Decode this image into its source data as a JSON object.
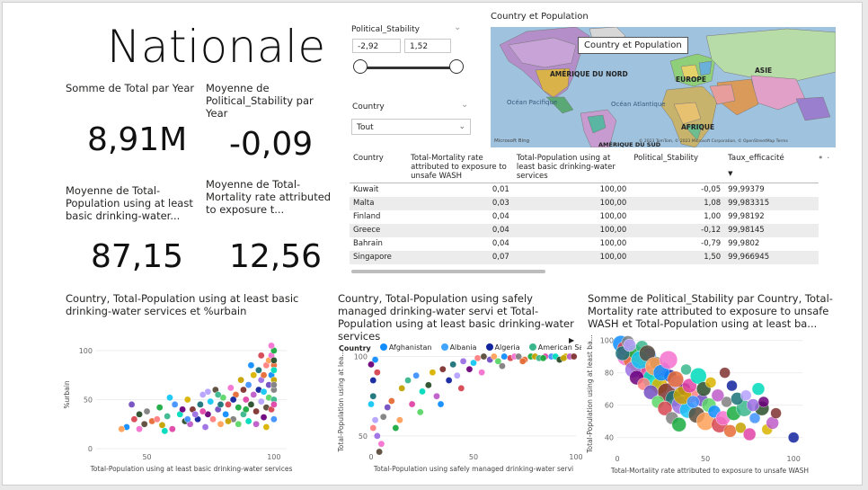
{
  "header": {
    "title": "Nationale"
  },
  "kpis": [
    {
      "label": "Somme de Total par Year",
      "value": "8,91M"
    },
    {
      "label": "Moyenne de Political_Stability par Year",
      "value": "-0,09"
    },
    {
      "label": "Moyenne de Total-Population using at least basic drinking-water...",
      "value": "87,15"
    },
    {
      "label": "Moyenne de Total-Mortality rate attributed to exposure t...",
      "value": "12,56"
    }
  ],
  "slicer_stability": {
    "title": "Political_Stability",
    "min": "-2,92",
    "max": "1,52"
  },
  "slicer_country": {
    "title": "Country",
    "selected": "Tout"
  },
  "map": {
    "title": "Country et Population",
    "tooltip": "Country et Population",
    "labels": {
      "north_america": "AMÉRIQUE DU NORD",
      "europe": "EUROPE",
      "asia": "ASIE",
      "pacific": "Océan Pacifique",
      "atlantic": "Océan Atlantique",
      "africa": "AFRIQUE",
      "south_america": "AMÉRIQUE DU SUD"
    },
    "attribution": "© 2023 TomTom, © 2023 Microsoft Corporation, © OpenStreetMap Terms",
    "bing": "Microsoft Bing"
  },
  "table": {
    "columns": [
      "Country",
      "Total-Mortality rate attributed to exposure to unsafe WASH",
      "Total-Population using at least basic drinking-water services",
      "Political_Stability",
      "Taux_efficacité"
    ],
    "rows": [
      [
        "Kuwait",
        "0,01",
        "100,00",
        "-0,05",
        "99,99379"
      ],
      [
        "Malta",
        "0,03",
        "100,00",
        "1,08",
        "99,983315"
      ],
      [
        "Finland",
        "0,04",
        "100,00",
        "1,00",
        "99,98192"
      ],
      [
        "Greece",
        "0,04",
        "100,00",
        "-0,12",
        "99,98145"
      ],
      [
        "Bahrain",
        "0,04",
        "100,00",
        "-0,79",
        "99,9802"
      ],
      [
        "Singapore",
        "0,07",
        "100,00",
        "1,50",
        "99,966945"
      ]
    ]
  },
  "chart1": {
    "title": "Country, Total-Population using at least basic drinking-water services et %urbain",
    "chart_data": {
      "type": "scatter",
      "xlabel": "Total-Population using at least basic drinking-water services",
      "ylabel": "%urbain",
      "xlim": [
        30,
        105
      ],
      "ylim": [
        0,
        110
      ],
      "xticks": [
        "50",
        "100"
      ],
      "yticks": [
        "0",
        "50",
        "100"
      ],
      "points": [
        [
          42,
          22
        ],
        [
          45,
          30
        ],
        [
          47,
          20
        ],
        [
          50,
          38
        ],
        [
          52,
          28
        ],
        [
          55,
          42
        ],
        [
          56,
          24
        ],
        [
          58,
          33
        ],
        [
          60,
          20
        ],
        [
          61,
          45
        ],
        [
          63,
          35
        ],
        [
          65,
          28
        ],
        [
          66,
          50
        ],
        [
          67,
          25
        ],
        [
          68,
          40
        ],
        [
          70,
          30
        ],
        [
          71,
          45
        ],
        [
          72,
          55
        ],
        [
          73,
          22
        ],
        [
          74,
          35
        ],
        [
          75,
          48
        ],
        [
          76,
          30
        ],
        [
          77,
          60
        ],
        [
          78,
          40
        ],
        [
          79,
          25
        ],
        [
          80,
          52
        ],
        [
          81,
          35
        ],
        [
          82,
          45
        ],
        [
          83,
          62
        ],
        [
          84,
          30
        ],
        [
          85,
          55
        ],
        [
          86,
          42
        ],
        [
          87,
          70
        ],
        [
          88,
          35
        ],
        [
          89,
          50
        ],
        [
          90,
          65
        ],
        [
          90,
          28
        ],
        [
          91,
          45
        ],
        [
          92,
          75
        ],
        [
          92,
          55
        ],
        [
          93,
          38
        ],
        [
          94,
          60
        ],
        [
          94,
          80
        ],
        [
          95,
          48
        ],
        [
          95,
          70
        ],
        [
          96,
          32
        ],
        [
          96,
          58
        ],
        [
          97,
          85
        ],
        [
          97,
          42
        ],
        [
          98,
          65
        ],
        [
          98,
          90
        ],
        [
          98,
          52
        ],
        [
          99,
          75
        ],
        [
          99,
          40
        ],
        [
          99,
          95
        ],
        [
          100,
          60
        ],
        [
          100,
          85
        ],
        [
          100,
          100
        ],
        [
          100,
          70
        ],
        [
          100,
          50
        ],
        [
          100,
          45
        ],
        [
          100,
          30
        ],
        [
          100,
          80
        ],
        [
          100,
          90
        ],
        [
          97,
          22
        ],
        [
          93,
          25
        ],
        [
          88,
          60
        ],
        [
          84,
          50
        ],
        [
          79,
          45
        ],
        [
          74,
          58
        ],
        [
          69,
          35
        ],
        [
          64,
          40
        ],
        [
          59,
          52
        ],
        [
          54,
          30
        ],
        [
          49,
          25
        ],
        [
          44,
          45
        ],
        [
          40,
          20
        ],
        [
          86,
          25
        ],
        [
          91,
          85
        ],
        [
          95,
          95
        ],
        [
          99,
          105
        ],
        [
          100,
          65
        ],
        [
          96,
          75
        ],
        [
          89,
          40
        ],
        [
          82,
          28
        ],
        [
          78,
          55
        ],
        [
          72,
          38
        ],
        [
          66,
          30
        ],
        [
          57,
          18
        ],
        [
          47,
          35
        ]
      ]
    }
  },
  "chart2": {
    "title": "Country, Total-Population using safely managed drinking-water servi et Total-Population using at least basic drinking-water services",
    "legend_title": "Country",
    "legend": [
      {
        "name": "Afghanistan",
        "color": "#118DFF"
      },
      {
        "name": "Albania",
        "color": "#41A4FF"
      },
      {
        "name": "Algeria",
        "color": "#12239E"
      },
      {
        "name": "American Samoa",
        "color": "#3AB78C"
      }
    ],
    "chart_data": {
      "type": "scatter",
      "xlabel": "Total-Population using safely managed drinking-water servi",
      "ylabel": "Total-Population using at lea...",
      "xlim": [
        0,
        100
      ],
      "ylim": [
        42,
        102
      ],
      "xticks": [
        "0",
        "50",
        "100"
      ],
      "yticks": [
        "50",
        "100"
      ],
      "points": [
        [
          2,
          98
        ],
        [
          3,
          90
        ],
        [
          5,
          45
        ],
        [
          6,
          62
        ],
        [
          10,
          72
        ],
        [
          12,
          55
        ],
        [
          15,
          80
        ],
        [
          18,
          85
        ],
        [
          20,
          70
        ],
        [
          22,
          88
        ],
        [
          25,
          78
        ],
        [
          28,
          82
        ],
        [
          30,
          90
        ],
        [
          32,
          75
        ],
        [
          35,
          92
        ],
        [
          38,
          85
        ],
        [
          40,
          95
        ],
        [
          42,
          88
        ],
        [
          45,
          97
        ],
        [
          48,
          92
        ],
        [
          50,
          96
        ],
        [
          52,
          99
        ],
        [
          55,
          100
        ],
        [
          58,
          98
        ],
        [
          60,
          100
        ],
        [
          62,
          97
        ],
        [
          65,
          100
        ],
        [
          68,
          99
        ],
        [
          70,
          100
        ],
        [
          72,
          100
        ],
        [
          75,
          98
        ],
        [
          78,
          100
        ],
        [
          80,
          100
        ],
        [
          82,
          99
        ],
        [
          85,
          100
        ],
        [
          88,
          100
        ],
        [
          90,
          100
        ],
        [
          92,
          98
        ],
        [
          95,
          100
        ],
        [
          97,
          100
        ],
        [
          99,
          100
        ],
        [
          1,
          85
        ],
        [
          1,
          75
        ],
        [
          2,
          60
        ],
        [
          3,
          50
        ],
        [
          0,
          95
        ],
        [
          0,
          70
        ],
        [
          1,
          55
        ],
        [
          4,
          40
        ],
        [
          8,
          68
        ],
        [
          14,
          60
        ],
        [
          24,
          65
        ],
        [
          34,
          70
        ],
        [
          44,
          80
        ],
        [
          54,
          90
        ],
        [
          64,
          94
        ],
        [
          74,
          97
        ],
        [
          84,
          99
        ],
        [
          94,
          99
        ]
      ]
    }
  },
  "chart3": {
    "title": "Somme de Political_Stability par Country, Total-Mortality rate attributed to exposure to unsafe WASH et Total-Population using at least ba...",
    "chart_data": {
      "type": "scatter",
      "xlabel": "Total-Mortality rate attributed to exposure to unsafe WASH",
      "ylabel": "Total-Population using at least ba...",
      "xlim": [
        0,
        105
      ],
      "ylim": [
        32,
        102
      ],
      "xticks": [
        "0",
        "50",
        "100"
      ],
      "yticks": [
        "40",
        "60",
        "80",
        "100"
      ],
      "points": [
        [
          2,
          98,
          9
        ],
        [
          4,
          95,
          8
        ],
        [
          5,
          90,
          10
        ],
        [
          6,
          99,
          7
        ],
        [
          8,
          88,
          9
        ],
        [
          10,
          93,
          8
        ],
        [
          12,
          85,
          10
        ],
        [
          14,
          96,
          7
        ],
        [
          16,
          80,
          9
        ],
        [
          18,
          91,
          8
        ],
        [
          20,
          76,
          11
        ],
        [
          22,
          86,
          7
        ],
        [
          24,
          72,
          9
        ],
        [
          26,
          82,
          8
        ],
        [
          28,
          68,
          10
        ],
        [
          30,
          78,
          7
        ],
        [
          32,
          64,
          9
        ],
        [
          34,
          74,
          8
        ],
        [
          36,
          60,
          10
        ],
        [
          38,
          70,
          7
        ],
        [
          40,
          57,
          9
        ],
        [
          42,
          66,
          8
        ],
        [
          45,
          54,
          9
        ],
        [
          48,
          63,
          7
        ],
        [
          50,
          50,
          10
        ],
        [
          52,
          60,
          8
        ],
        [
          55,
          56,
          7
        ],
        [
          58,
          48,
          9
        ],
        [
          60,
          52,
          8
        ],
        [
          62,
          62,
          6
        ],
        [
          64,
          44,
          7
        ],
        [
          66,
          55,
          8
        ],
        [
          70,
          46,
          6
        ],
        [
          72,
          58,
          9
        ],
        [
          75,
          42,
          7
        ],
        [
          78,
          52,
          6
        ],
        [
          80,
          70,
          7
        ],
        [
          82,
          58,
          8
        ],
        [
          85,
          45,
          6
        ],
        [
          88,
          49,
          7
        ],
        [
          90,
          55,
          6
        ],
        [
          100,
          40,
          6
        ],
        [
          3,
          92,
          8
        ],
        [
          7,
          97,
          7
        ],
        [
          9,
          82,
          9
        ],
        [
          11,
          77,
          8
        ],
        [
          13,
          88,
          10
        ],
        [
          15,
          73,
          7
        ],
        [
          17,
          92,
          9
        ],
        [
          19,
          68,
          8
        ],
        [
          21,
          84,
          10
        ],
        [
          23,
          62,
          7
        ],
        [
          25,
          80,
          9
        ],
        [
          27,
          58,
          8
        ],
        [
          29,
          88,
          10
        ],
        [
          31,
          52,
          7
        ],
        [
          33,
          76,
          9
        ],
        [
          35,
          48,
          8
        ],
        [
          37,
          66,
          10
        ],
        [
          39,
          82,
          6
        ],
        [
          41,
          72,
          8
        ],
        [
          43,
          62,
          7
        ],
        [
          46,
          78,
          9
        ],
        [
          49,
          70,
          8
        ],
        [
          53,
          74,
          6
        ],
        [
          57,
          66,
          7
        ],
        [
          61,
          80,
          6
        ],
        [
          65,
          72,
          6
        ],
        [
          68,
          64,
          7
        ],
        [
          73,
          66,
          6
        ],
        [
          77,
          60,
          7
        ],
        [
          83,
          62,
          6
        ]
      ]
    }
  }
}
